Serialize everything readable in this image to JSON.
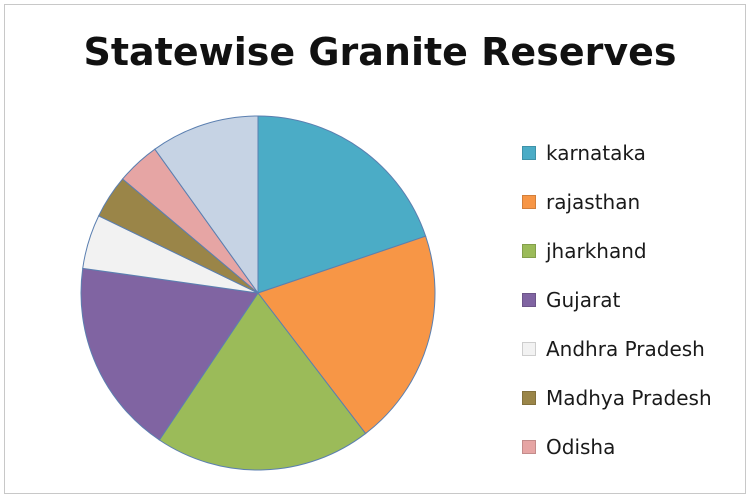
{
  "chart_data": {
    "type": "pie",
    "title": "Statewise Granite Reserves",
    "categories": [
      "karnataka",
      "rajasthan",
      "jharkhand",
      "Gujarat",
      "Andhra Pradesh",
      "Madhya Pradesh",
      "Odisha",
      ""
    ],
    "values": [
      20,
      20,
      20,
      18,
      5,
      4,
      4,
      10
    ],
    "colors": [
      "#4bacc6",
      "#f79646",
      "#9bbb59",
      "#8064a2",
      "#f2f2f2",
      "#9a8548",
      "#e6a5a4",
      "#c6d3e4"
    ],
    "legend_position": "right",
    "start_angle_deg": 0,
    "direction": "clockwise"
  },
  "legend": [
    {
      "label": "karnataka",
      "color": "#4bacc6"
    },
    {
      "label": "rajasthan",
      "color": "#f79646"
    },
    {
      "label": "jharkhand",
      "color": "#9bbb59"
    },
    {
      "label": "Gujarat",
      "color": "#8064a2"
    },
    {
      "label": "Andhra Pradesh",
      "color": "#f2f2f2"
    },
    {
      "label": "Madhya Pradesh",
      "color": "#9a8548"
    },
    {
      "label": "Odisha",
      "color": "#e6a5a4"
    }
  ]
}
